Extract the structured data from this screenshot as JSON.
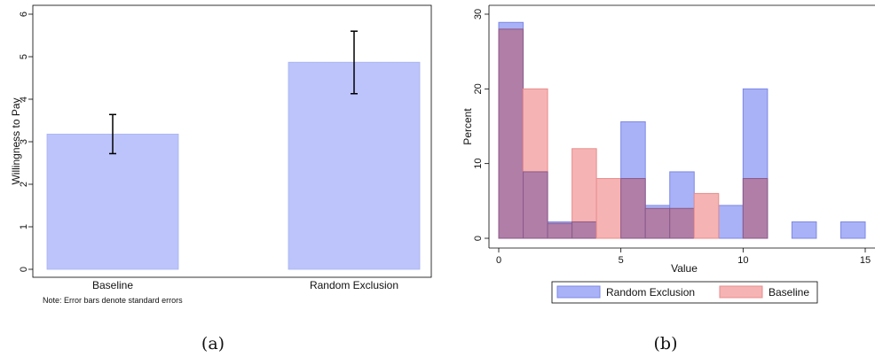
{
  "chart_data": [
    {
      "type": "bar",
      "panel_label": "(a)",
      "ylabel": "Willingness to Pay",
      "xlabel": "",
      "ylim": [
        0,
        6
      ],
      "yticks": [
        0,
        1,
        2,
        3,
        4,
        5,
        6
      ],
      "categories": [
        "Baseline",
        "Random Exclusion"
      ],
      "values": [
        3.18,
        4.87
      ],
      "error_low": [
        2.72,
        4.13
      ],
      "error_high": [
        3.64,
        5.6
      ],
      "note": "Note: Error bars denote standard errors",
      "grid": false,
      "bar_color": "#bcc4fb",
      "bar_edge": "#a9b3f0"
    },
    {
      "type": "histogram",
      "panel_label": "(b)",
      "ylabel": "Percent",
      "xlabel": "Value",
      "xlim": [
        -0.5,
        15
      ],
      "ylim": [
        0,
        30
      ],
      "xticks": [
        0,
        5,
        10,
        15
      ],
      "yticks": [
        0,
        10,
        20,
        30
      ],
      "bin_width": 1,
      "series": [
        {
          "name": "Random Exclusion",
          "color": "#a9b2f6",
          "edge": "#7d88e6",
          "bins": [
            {
              "x0": 0,
              "x1": 1,
              "value": 28.9
            },
            {
              "x0": 1,
              "x1": 2,
              "value": 8.9
            },
            {
              "x0": 2,
              "x1": 3,
              "value": 2.2
            },
            {
              "x0": 3,
              "x1": 4,
              "value": 2.2
            },
            {
              "x0": 5,
              "x1": 6,
              "value": 15.6
            },
            {
              "x0": 6,
              "x1": 7,
              "value": 4.4
            },
            {
              "x0": 7,
              "x1": 8,
              "value": 8.9
            },
            {
              "x0": 9,
              "x1": 10,
              "value": 4.4
            },
            {
              "x0": 10,
              "x1": 11,
              "value": 20.0
            },
            {
              "x0": 12,
              "x1": 13,
              "value": 2.2
            },
            {
              "x0": 14,
              "x1": 15,
              "value": 2.2
            }
          ]
        },
        {
          "name": "Baseline",
          "color": "#f6b3b3",
          "edge": "#e88d8d",
          "bins": [
            {
              "x0": 0,
              "x1": 1,
              "value": 28.0
            },
            {
              "x0": 1,
              "x1": 2,
              "value": 20.0
            },
            {
              "x0": 2,
              "x1": 3,
              "value": 2.0
            },
            {
              "x0": 3,
              "x1": 4,
              "value": 12.0
            },
            {
              "x0": 4,
              "x1": 5,
              "value": 8.0
            },
            {
              "x0": 5,
              "x1": 6,
              "value": 8.0
            },
            {
              "x0": 6,
              "x1": 7,
              "value": 4.0
            },
            {
              "x0": 7,
              "x1": 8,
              "value": 4.0
            },
            {
              "x0": 8,
              "x1": 9,
              "value": 6.0
            },
            {
              "x0": 10,
              "x1": 11,
              "value": 8.0
            }
          ]
        }
      ],
      "overlap_color": "#b07ea6",
      "overlap_edge": "#8a5a8a",
      "legend_position": "bottom",
      "grid": false
    }
  ]
}
